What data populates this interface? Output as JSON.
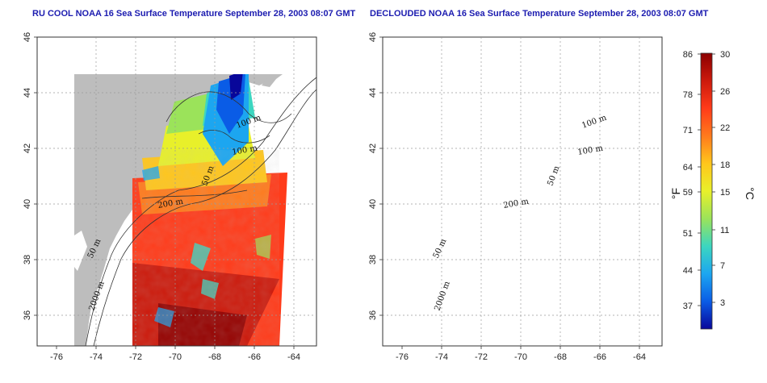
{
  "panels": [
    {
      "title": "RU COOL NOAA 16 Sea Surface Temperature September 28, 2003 08:07 GMT",
      "mode": "raw"
    },
    {
      "title": "DECLOUDED NOAA 16 Sea Surface Temperature September 28, 2003 08:07 GMT",
      "mode": "declouded"
    }
  ],
  "map_axes": {
    "lon_ticks": [
      "-76",
      "-74",
      "-72",
      "-70",
      "-68",
      "-66",
      "-64"
    ],
    "lat_ticks": [
      "46",
      "44",
      "42",
      "40",
      "38",
      "36"
    ]
  },
  "contour_labels": [
    "100 m",
    "100 m",
    "50 m",
    "200 m",
    "50 m",
    "2000 m"
  ],
  "colorbar": {
    "fahrenheit_ticks": [
      "86",
      "78",
      "71",
      "64",
      "59",
      "51",
      "44",
      "37"
    ],
    "celsius_ticks": [
      "30",
      "26",
      "22",
      "18",
      "15",
      "11",
      "7",
      "3"
    ],
    "left_unit": "°F",
    "right_unit": "°C",
    "colors": [
      "#8b0000",
      "#cc1a0c",
      "#ff3b1a",
      "#ff7a1c",
      "#ffc61c",
      "#e8f02a",
      "#9be35a",
      "#3cd6c0",
      "#1ca6f0",
      "#0a5ce6",
      "#08079a"
    ]
  },
  "colors": {
    "land": "#bdbdbd",
    "title": "#1c1cb0"
  }
}
